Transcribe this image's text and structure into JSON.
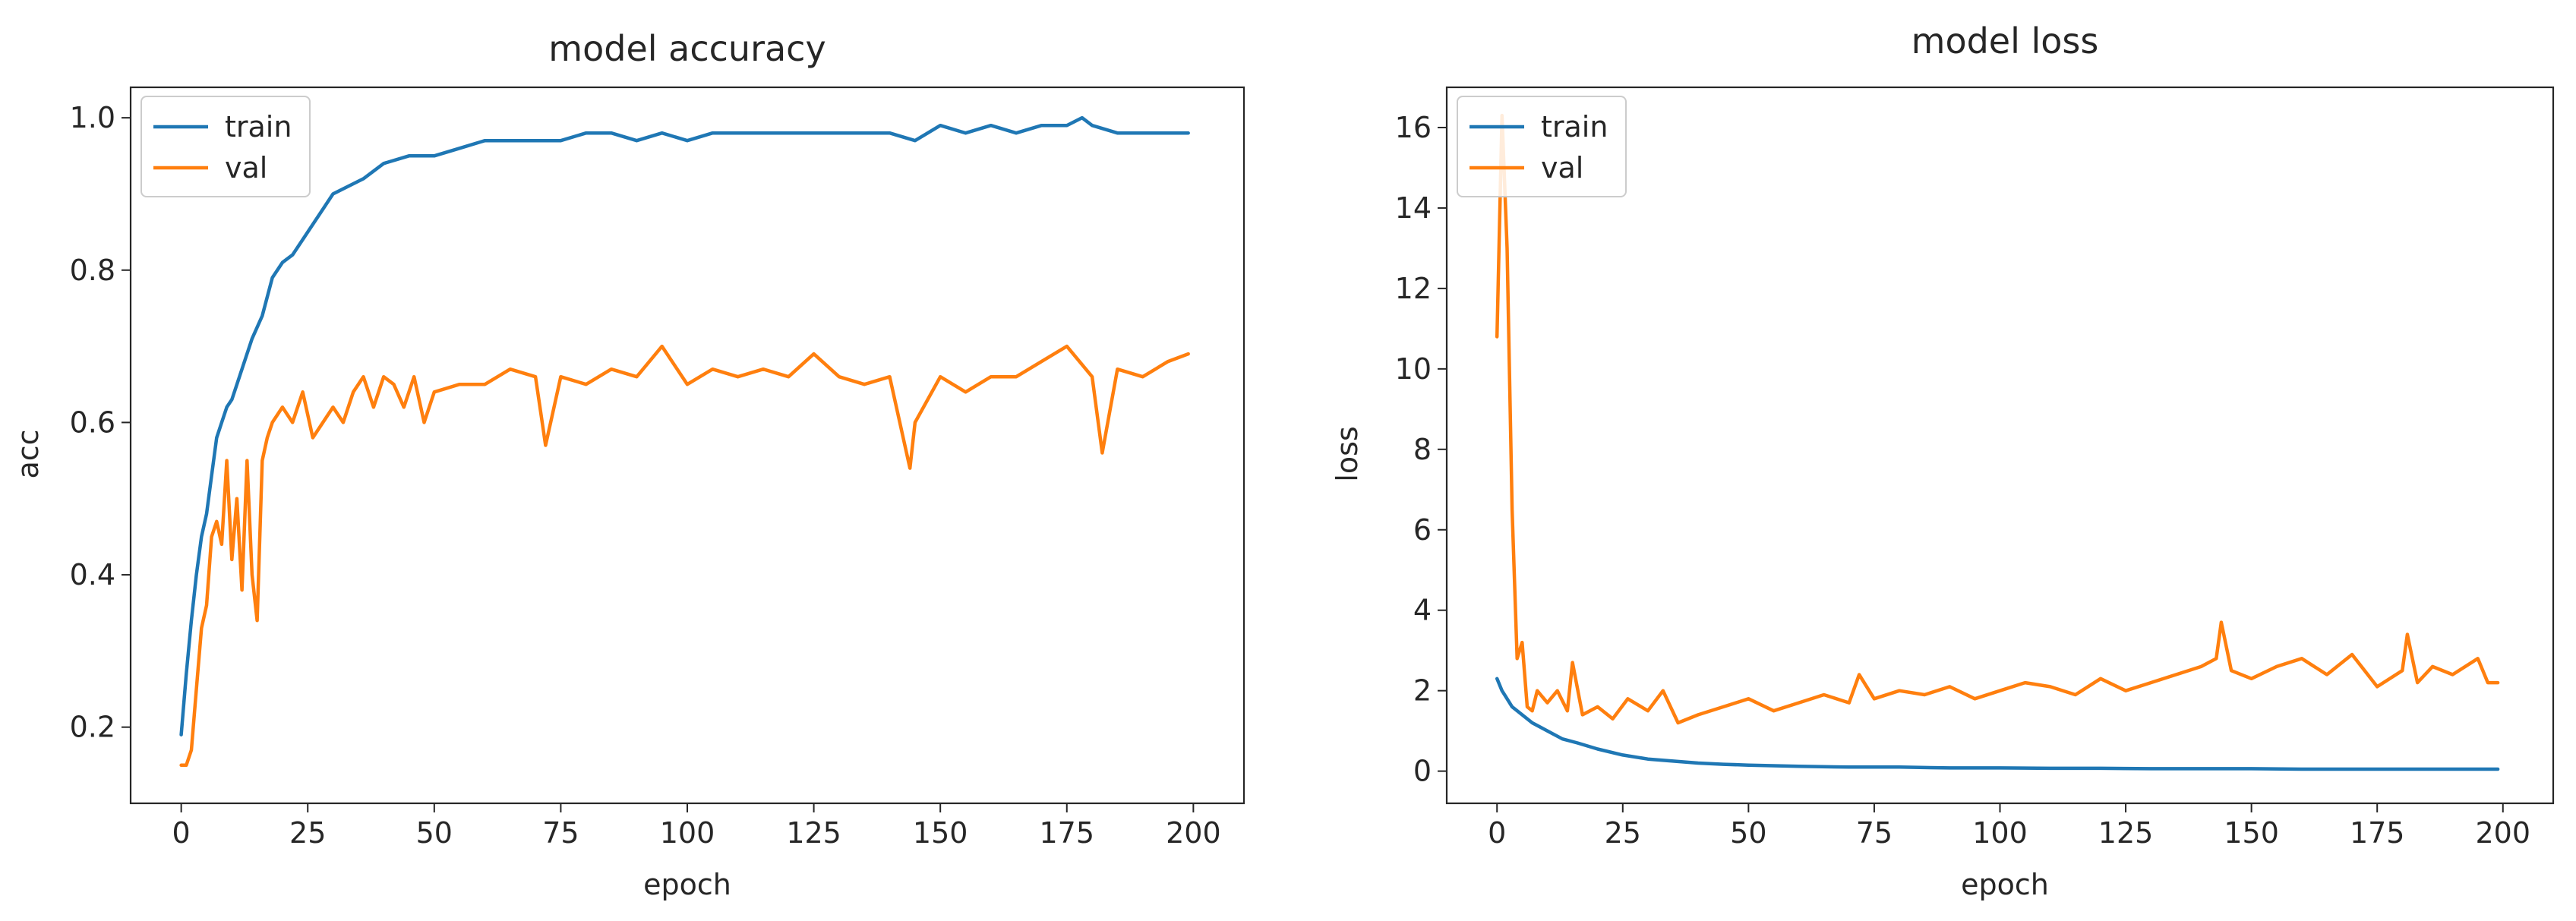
{
  "colors": {
    "train": "#1f77b4",
    "val": "#ff7f0e",
    "axes": "#262626",
    "legend_edge": "#cccccc"
  },
  "chart_data": [
    {
      "type": "line",
      "title": "model accuracy",
      "xlabel": "epoch",
      "ylabel": "acc",
      "xlim": [
        -10,
        210
      ],
      "ylim": [
        0.1,
        1.04
      ],
      "xticks": [
        0,
        25,
        50,
        75,
        100,
        125,
        150,
        175,
        200
      ],
      "xtick_labels": [
        "0",
        "25",
        "50",
        "75",
        "100",
        "125",
        "150",
        "175",
        "200"
      ],
      "yticks": [
        0.2,
        0.4,
        0.6,
        0.8,
        1.0
      ],
      "ytick_labels": [
        "0.2",
        "0.4",
        "0.6",
        "0.8",
        "1.0"
      ],
      "legend": {
        "position": "upper left",
        "entries": [
          "train",
          "val"
        ]
      },
      "series": [
        {
          "name": "train",
          "color_key": "train",
          "x": [
            0,
            1,
            2,
            3,
            4,
            5,
            6,
            7,
            8,
            9,
            10,
            12,
            14,
            16,
            18,
            20,
            22,
            25,
            28,
            30,
            33,
            36,
            40,
            45,
            50,
            55,
            60,
            65,
            70,
            75,
            80,
            85,
            90,
            95,
            100,
            105,
            110,
            115,
            120,
            125,
            130,
            135,
            140,
            145,
            150,
            155,
            160,
            165,
            170,
            175,
            178,
            180,
            185,
            190,
            195,
            199
          ],
          "y": [
            0.19,
            0.27,
            0.34,
            0.4,
            0.45,
            0.48,
            0.53,
            0.58,
            0.6,
            0.62,
            0.63,
            0.67,
            0.71,
            0.74,
            0.79,
            0.81,
            0.82,
            0.85,
            0.88,
            0.9,
            0.91,
            0.92,
            0.94,
            0.95,
            0.95,
            0.96,
            0.97,
            0.97,
            0.97,
            0.97,
            0.98,
            0.98,
            0.97,
            0.98,
            0.97,
            0.98,
            0.98,
            0.98,
            0.98,
            0.98,
            0.98,
            0.98,
            0.98,
            0.97,
            0.99,
            0.98,
            0.99,
            0.98,
            0.99,
            0.99,
            1.0,
            0.99,
            0.98,
            0.98,
            0.98,
            0.98
          ]
        },
        {
          "name": "val",
          "color_key": "val",
          "x": [
            0,
            1,
            2,
            3,
            4,
            5,
            6,
            7,
            8,
            9,
            10,
            11,
            12,
            13,
            14,
            15,
            16,
            17,
            18,
            20,
            22,
            24,
            26,
            28,
            30,
            32,
            34,
            36,
            38,
            40,
            42,
            44,
            46,
            48,
            50,
            55,
            60,
            65,
            70,
            72,
            75,
            80,
            85,
            90,
            95,
            100,
            105,
            110,
            115,
            120,
            125,
            130,
            135,
            140,
            143,
            144,
            145,
            150,
            155,
            160,
            165,
            170,
            175,
            180,
            182,
            185,
            190,
            195,
            199
          ],
          "y": [
            0.15,
            0.15,
            0.17,
            0.25,
            0.33,
            0.36,
            0.45,
            0.47,
            0.44,
            0.55,
            0.42,
            0.5,
            0.38,
            0.55,
            0.4,
            0.34,
            0.55,
            0.58,
            0.6,
            0.62,
            0.6,
            0.64,
            0.58,
            0.6,
            0.62,
            0.6,
            0.64,
            0.66,
            0.62,
            0.66,
            0.65,
            0.62,
            0.66,
            0.6,
            0.64,
            0.65,
            0.65,
            0.67,
            0.66,
            0.57,
            0.66,
            0.65,
            0.67,
            0.66,
            0.7,
            0.65,
            0.67,
            0.66,
            0.67,
            0.66,
            0.69,
            0.66,
            0.65,
            0.66,
            0.57,
            0.54,
            0.6,
            0.66,
            0.64,
            0.66,
            0.66,
            0.68,
            0.7,
            0.66,
            0.56,
            0.67,
            0.66,
            0.68,
            0.69
          ]
        }
      ]
    },
    {
      "type": "line",
      "title": "model loss",
      "xlabel": "epoch",
      "ylabel": "loss",
      "xlim": [
        -10,
        210
      ],
      "ylim": [
        -0.8,
        17
      ],
      "xticks": [
        0,
        25,
        50,
        75,
        100,
        125,
        150,
        175,
        200
      ],
      "xtick_labels": [
        "0",
        "25",
        "50",
        "75",
        "100",
        "125",
        "150",
        "175",
        "200"
      ],
      "yticks": [
        0,
        2,
        4,
        6,
        8,
        10,
        12,
        14,
        16
      ],
      "ytick_labels": [
        "0",
        "2",
        "4",
        "6",
        "8",
        "10",
        "12",
        "14",
        "16"
      ],
      "legend": {
        "position": "upper left",
        "entries": [
          "train",
          "val"
        ]
      },
      "series": [
        {
          "name": "train",
          "color_key": "train",
          "x": [
            0,
            1,
            2,
            3,
            5,
            7,
            10,
            13,
            16,
            20,
            25,
            30,
            35,
            40,
            45,
            50,
            60,
            70,
            80,
            90,
            100,
            110,
            120,
            130,
            140,
            150,
            160,
            170,
            180,
            190,
            199
          ],
          "y": [
            2.3,
            2.0,
            1.8,
            1.6,
            1.4,
            1.2,
            1.0,
            0.8,
            0.7,
            0.55,
            0.4,
            0.3,
            0.25,
            0.2,
            0.17,
            0.15,
            0.12,
            0.1,
            0.1,
            0.08,
            0.08,
            0.07,
            0.07,
            0.06,
            0.06,
            0.06,
            0.05,
            0.05,
            0.05,
            0.05,
            0.05
          ]
        },
        {
          "name": "val",
          "color_key": "val",
          "x": [
            0,
            1,
            2,
            3,
            4,
            5,
            6,
            7,
            8,
            10,
            12,
            14,
            15,
            17,
            20,
            23,
            26,
            30,
            33,
            36,
            40,
            45,
            50,
            55,
            60,
            65,
            70,
            72,
            75,
            80,
            85,
            90,
            95,
            100,
            105,
            110,
            115,
            120,
            125,
            130,
            135,
            140,
            143,
            144,
            146,
            150,
            155,
            160,
            165,
            170,
            175,
            180,
            181,
            183,
            186,
            190,
            195,
            197,
            199
          ],
          "y": [
            10.8,
            16.3,
            13.0,
            6.5,
            2.8,
            3.2,
            1.6,
            1.5,
            2.0,
            1.7,
            2.0,
            1.5,
            2.7,
            1.4,
            1.6,
            1.3,
            1.8,
            1.5,
            2.0,
            1.2,
            1.4,
            1.6,
            1.8,
            1.5,
            1.7,
            1.9,
            1.7,
            2.4,
            1.8,
            2.0,
            1.9,
            2.1,
            1.8,
            2.0,
            2.2,
            2.1,
            1.9,
            2.3,
            2.0,
            2.2,
            2.4,
            2.6,
            2.8,
            3.7,
            2.5,
            2.3,
            2.6,
            2.8,
            2.4,
            2.9,
            2.1,
            2.5,
            3.4,
            2.2,
            2.6,
            2.4,
            2.8,
            2.2,
            2.2
          ]
        }
      ]
    }
  ]
}
